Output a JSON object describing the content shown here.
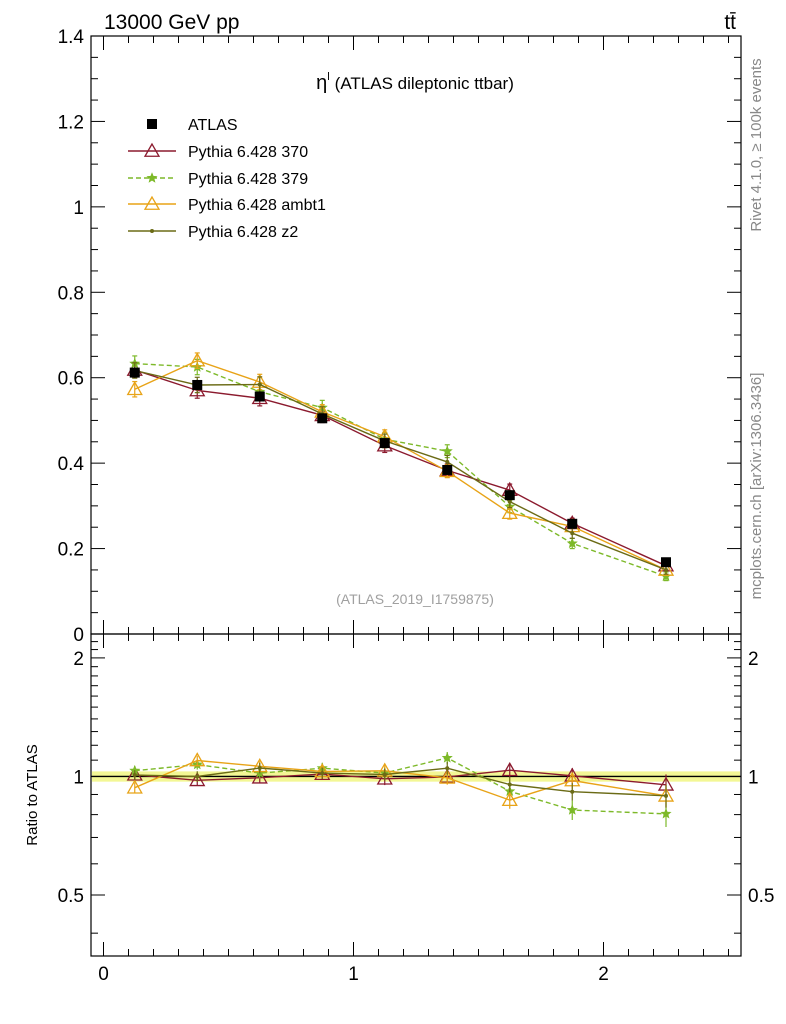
{
  "header": {
    "energy_label": "13000 GeV pp",
    "process_label": "tt̄"
  },
  "side_labels": {
    "rivet": "Rivet 4.1.0, ≥ 100k events",
    "mcplots": "mcplots.cern.ch [arXiv:1306.3436]"
  },
  "chart_data": {
    "type": "line",
    "title": "η",
    "title_sup": "l",
    "title_suffix": "(ATLAS dileptonic ttbar)",
    "watermark": "(ATLAS_2019_I1759875)",
    "xlim": [
      -0.05,
      2.55
    ],
    "ylim": [
      0,
      1.4
    ],
    "ratio_ylabel": "Ratio to ATLAS",
    "ratio_ylim": [
      0.35,
      2.3
    ],
    "x_ticks": [
      "0",
      "1",
      "2"
    ],
    "y_ticks": [
      "0",
      "0.2",
      "0.4",
      "0.6",
      "0.8",
      "1",
      "1.2",
      "1.4"
    ],
    "ratio_ticks": [
      "0.5",
      "1",
      "2"
    ],
    "x": [
      0.125,
      0.375,
      0.625,
      0.875,
      1.125,
      1.375,
      1.625,
      1.875,
      2.25
    ],
    "data": {
      "name": "ATLAS",
      "values": [
        0.612,
        0.583,
        0.556,
        0.505,
        0.447,
        0.384,
        0.325,
        0.258,
        0.168
      ],
      "errors": [
        0.012,
        0.012,
        0.012,
        0.011,
        0.01,
        0.009,
        0.009,
        0.008,
        0.007
      ]
    },
    "series": [
      {
        "name": "Pythia 6.428 370",
        "color": "#8b1a2e",
        "dashed": false,
        "marker": "triangle-open",
        "values": [
          0.618,
          0.57,
          0.552,
          0.512,
          0.441,
          0.383,
          0.337,
          0.259,
          0.16
        ],
        "errors": [
          0.018,
          0.018,
          0.018,
          0.017,
          0.016,
          0.015,
          0.014,
          0.012,
          0.01
        ]
      },
      {
        "name": "Pythia 6.428 379",
        "color": "#7db929",
        "dashed": true,
        "marker": "star",
        "values": [
          0.633,
          0.625,
          0.567,
          0.53,
          0.456,
          0.428,
          0.298,
          0.212,
          0.135
        ],
        "errors": [
          0.018,
          0.018,
          0.018,
          0.017,
          0.016,
          0.015,
          0.014,
          0.012,
          0.01
        ]
      },
      {
        "name": "Pythia 6.428 ambt1",
        "color": "#e8a317",
        "dashed": false,
        "marker": "triangle-open",
        "values": [
          0.573,
          0.64,
          0.59,
          0.52,
          0.462,
          0.381,
          0.283,
          0.252,
          0.15
        ],
        "errors": [
          0.018,
          0.018,
          0.018,
          0.017,
          0.016,
          0.015,
          0.014,
          0.012,
          0.01
        ]
      },
      {
        "name": "Pythia 6.428 z2",
        "color": "#6b6b16",
        "dashed": false,
        "marker": "dot",
        "values": [
          0.617,
          0.583,
          0.584,
          0.515,
          0.452,
          0.403,
          0.31,
          0.236,
          0.15
        ],
        "errors": [
          0.018,
          0.018,
          0.018,
          0.017,
          0.016,
          0.015,
          0.014,
          0.012,
          0.01
        ]
      }
    ]
  }
}
